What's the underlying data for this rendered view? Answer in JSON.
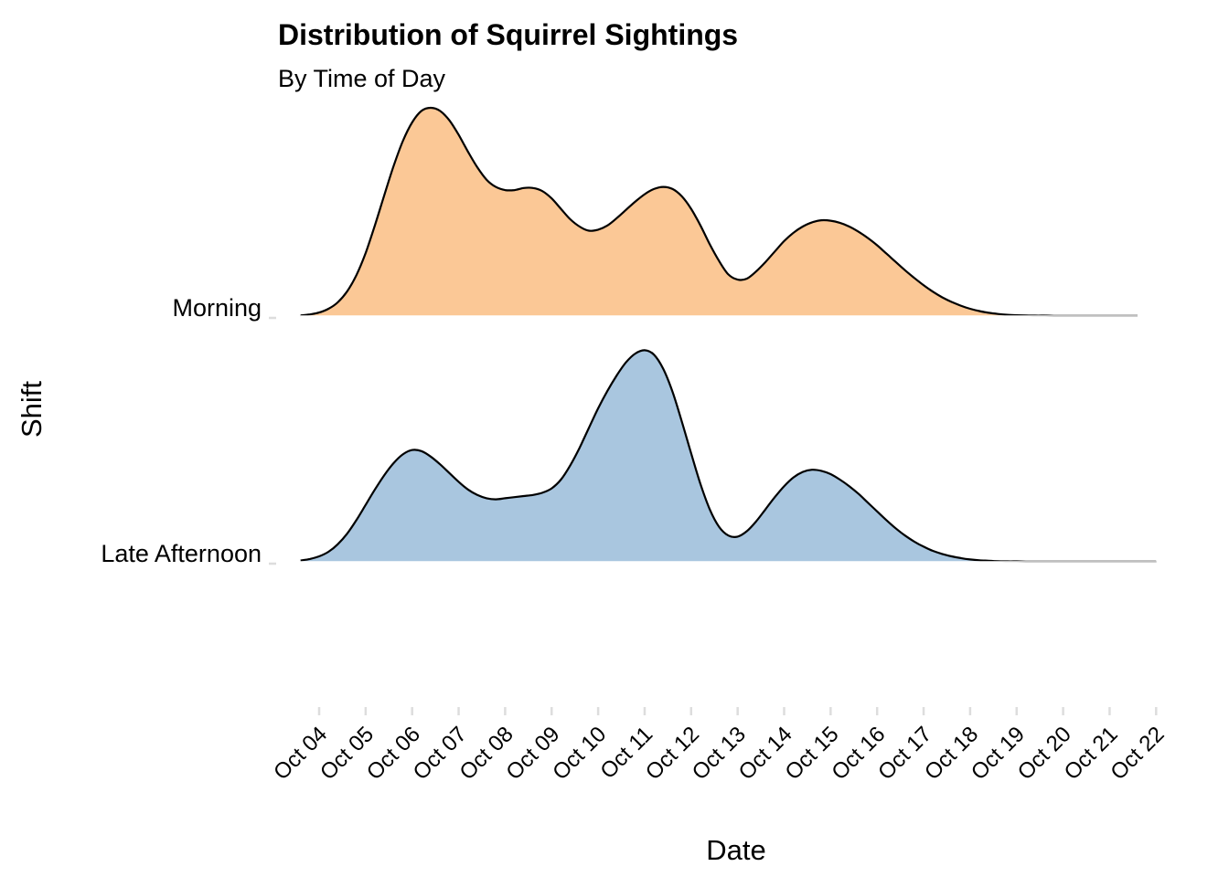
{
  "chart_data": {
    "type": "area",
    "subtype": "ridgeline",
    "title": "Distribution of Squirrel Sightings",
    "subtitle": "By Time of Day",
    "xlabel": "Date",
    "ylabel": "Shift",
    "x_ticks": [
      "Oct 04",
      "Oct 05",
      "Oct 06",
      "Oct 07",
      "Oct 08",
      "Oct 09",
      "Oct 10",
      "Oct 11",
      "Oct 12",
      "Oct 13",
      "Oct 14",
      "Oct 15",
      "Oct 16",
      "Oct 17",
      "Oct 18",
      "Oct 19",
      "Oct 20",
      "Oct 21",
      "Oct 22"
    ],
    "grid": false,
    "legend": "none",
    "series": [
      {
        "name": "Morning",
        "color": "#FBC896",
        "x": [
          3.6,
          3.8,
          4.0,
          4.2,
          4.4,
          4.6,
          4.8,
          5.0,
          5.2,
          5.4,
          5.6,
          5.8,
          6.0,
          6.2,
          6.4,
          6.6,
          6.8,
          7.0,
          7.2,
          7.4,
          7.6,
          7.8,
          8.0,
          8.2,
          8.4,
          8.6,
          8.8,
          9.0,
          9.2,
          9.4,
          9.6,
          9.8,
          10.0,
          10.2,
          10.4,
          10.6,
          10.8,
          11.0,
          11.2,
          11.4,
          11.6,
          11.8,
          12.0,
          12.2,
          12.4,
          12.6,
          12.8,
          13.0,
          13.2,
          13.4,
          13.6,
          13.8,
          14.0,
          14.2,
          14.4,
          14.6,
          14.8,
          15.0,
          15.2,
          15.4,
          15.6,
          15.8,
          16.0,
          16.2,
          16.4,
          16.6,
          16.8,
          17.0,
          17.2,
          17.4,
          17.6,
          17.8,
          18.0,
          18.2,
          18.4,
          18.6,
          18.8,
          19.0,
          19.2,
          19.4,
          19.6,
          19.8,
          20.0,
          20.2,
          20.4,
          20.6,
          20.8,
          21.0,
          21.2,
          21.4,
          21.6
        ],
        "density": [
          0.003,
          0.008,
          0.017,
          0.035,
          0.066,
          0.118,
          0.196,
          0.303,
          0.436,
          0.58,
          0.72,
          0.84,
          0.93,
          0.985,
          1.0,
          0.985,
          0.94,
          0.87,
          0.79,
          0.715,
          0.655,
          0.62,
          0.605,
          0.605,
          0.615,
          0.615,
          0.6,
          0.565,
          0.515,
          0.465,
          0.43,
          0.41,
          0.415,
          0.435,
          0.47,
          0.51,
          0.55,
          0.585,
          0.61,
          0.62,
          0.61,
          0.575,
          0.515,
          0.435,
          0.345,
          0.265,
          0.2,
          0.175,
          0.18,
          0.215,
          0.26,
          0.31,
          0.36,
          0.4,
          0.43,
          0.45,
          0.46,
          0.458,
          0.448,
          0.43,
          0.405,
          0.375,
          0.34,
          0.3,
          0.26,
          0.22,
          0.183,
          0.148,
          0.117,
          0.09,
          0.068,
          0.05,
          0.035,
          0.024,
          0.016,
          0.01,
          0.006,
          0.004,
          0.003,
          0.002,
          0.002,
          0.001,
          0.001,
          0.001,
          0.001,
          0.001,
          0.001,
          0.001,
          0.001,
          0.001,
          0.001
        ]
      },
      {
        "name": "Late Afternoon",
        "color": "#A9C6DF",
        "x": [
          3.6,
          3.8,
          4.0,
          4.2,
          4.4,
          4.6,
          4.8,
          5.0,
          5.2,
          5.4,
          5.6,
          5.8,
          6.0,
          6.2,
          6.4,
          6.6,
          6.8,
          7.0,
          7.2,
          7.4,
          7.6,
          7.8,
          8.0,
          8.2,
          8.4,
          8.6,
          8.8,
          9.0,
          9.2,
          9.4,
          9.6,
          9.8,
          10.0,
          10.2,
          10.4,
          10.6,
          10.8,
          11.0,
          11.2,
          11.4,
          11.6,
          11.8,
          12.0,
          12.2,
          12.4,
          12.6,
          12.8,
          13.0,
          13.2,
          13.4,
          13.6,
          13.8,
          14.0,
          14.2,
          14.4,
          14.6,
          14.8,
          15.0,
          15.2,
          15.4,
          15.6,
          15.8,
          16.0,
          16.2,
          16.4,
          16.6,
          16.8,
          17.0,
          17.2,
          17.4,
          17.6,
          17.8,
          18.0,
          18.2,
          18.4,
          18.6,
          18.8,
          19.0,
          19.2,
          19.4,
          19.6,
          19.8,
          20.0,
          20.2,
          20.4,
          20.6,
          20.8,
          21.0,
          21.2,
          21.4,
          21.6,
          21.8,
          22.0
        ],
        "density": [
          0.006,
          0.013,
          0.025,
          0.046,
          0.08,
          0.128,
          0.19,
          0.26,
          0.33,
          0.395,
          0.45,
          0.49,
          0.51,
          0.505,
          0.48,
          0.445,
          0.405,
          0.365,
          0.33,
          0.305,
          0.29,
          0.285,
          0.29,
          0.295,
          0.3,
          0.305,
          0.315,
          0.335,
          0.375,
          0.44,
          0.52,
          0.61,
          0.7,
          0.78,
          0.85,
          0.91,
          0.95,
          0.965,
          0.945,
          0.88,
          0.775,
          0.64,
          0.495,
          0.355,
          0.24,
          0.16,
          0.12,
          0.115,
          0.14,
          0.185,
          0.24,
          0.295,
          0.345,
          0.385,
          0.41,
          0.42,
          0.415,
          0.4,
          0.375,
          0.345,
          0.31,
          0.27,
          0.23,
          0.19,
          0.153,
          0.12,
          0.092,
          0.069,
          0.05,
          0.036,
          0.025,
          0.017,
          0.011,
          0.007,
          0.005,
          0.003,
          0.002,
          0.002,
          0.001,
          0.001,
          0.001,
          0.001,
          0.001,
          0.001,
          0.001,
          0.001,
          0.001,
          0.001,
          0.001,
          0.001,
          0.001,
          0.001,
          0.001
        ]
      }
    ]
  }
}
